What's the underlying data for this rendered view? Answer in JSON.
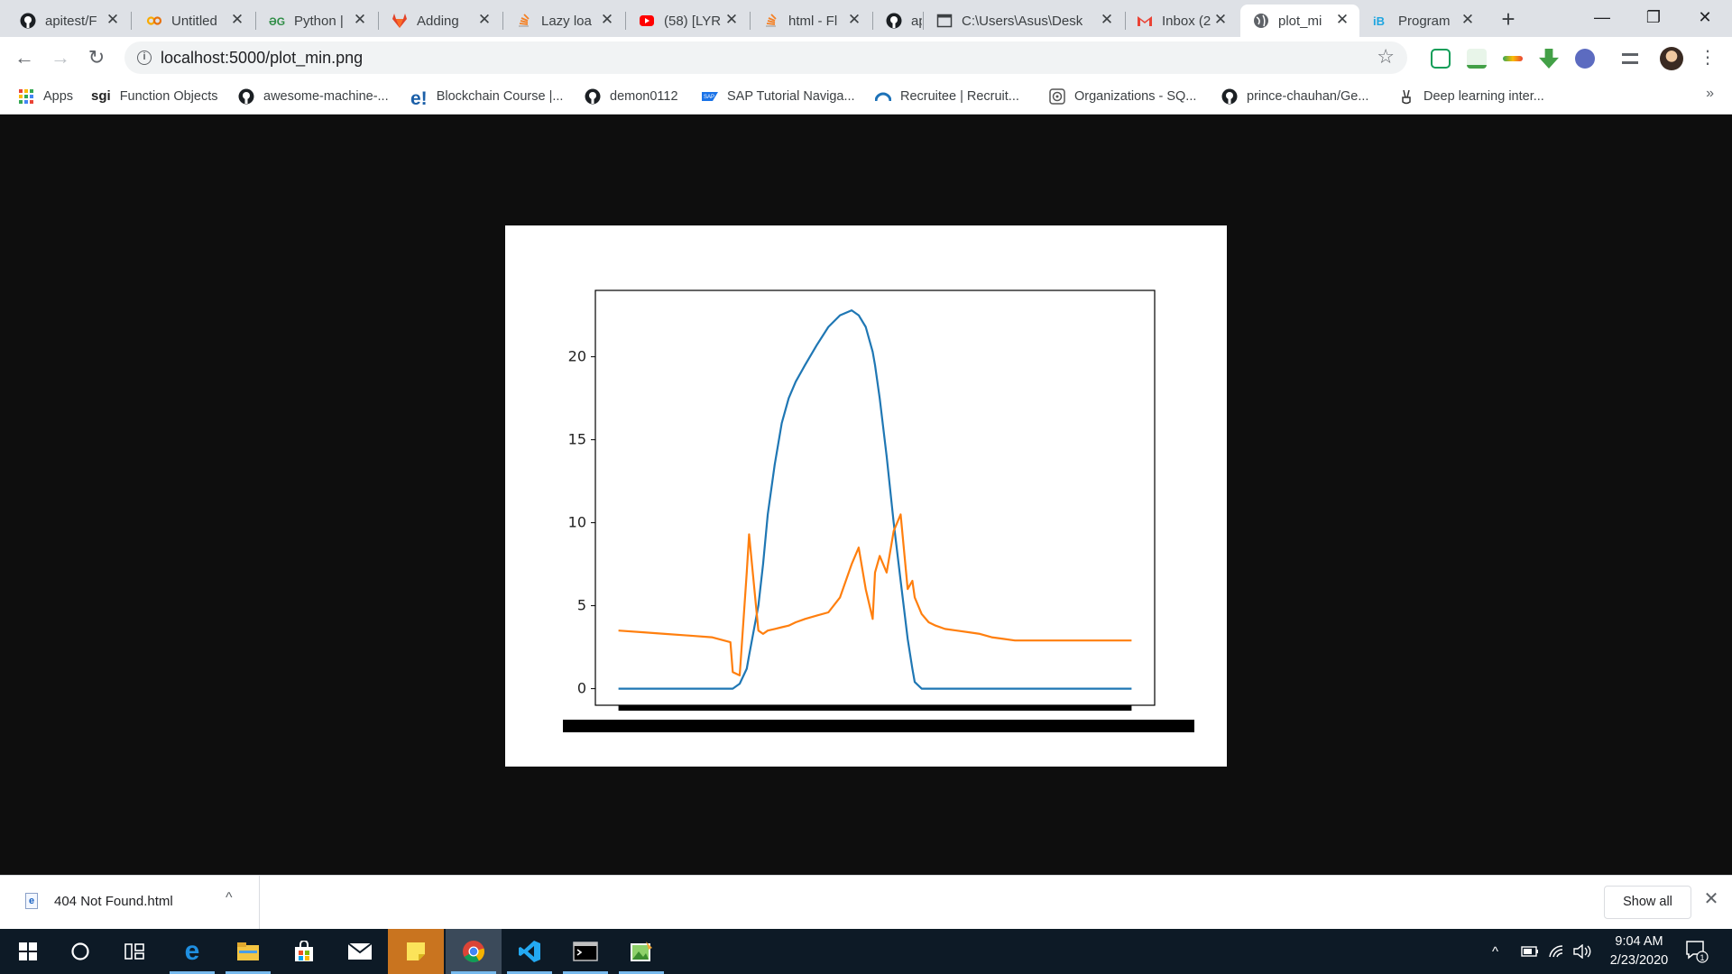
{
  "browser": {
    "tabs": [
      {
        "title": "apitest/F",
        "icon": "github-icon"
      },
      {
        "title": "Untitled",
        "icon": "colab-icon"
      },
      {
        "title": "Python |",
        "icon": "geeksforgeeks-icon"
      },
      {
        "title": "Adding",
        "icon": "gitlab-icon"
      },
      {
        "title": "Lazy loa",
        "icon": "stackoverflow-icon"
      },
      {
        "title": "(58) [LYR",
        "icon": "youtube-icon"
      },
      {
        "title": "html - Fl",
        "icon": "stackoverflow-icon"
      },
      {
        "title": "ap",
        "icon": "github-icon"
      },
      {
        "title": "C:\\Users\\Asus\\Desk",
        "icon": "file-window-icon"
      },
      {
        "title": "Inbox (2",
        "icon": "gmail-icon"
      },
      {
        "title": "plot_mi",
        "icon": "globe-icon",
        "active": true
      },
      {
        "title": "Program",
        "icon": "interviewbit-icon"
      }
    ],
    "new_tab_label": "+",
    "window_controls": {
      "minimize": "—",
      "restore": "❐",
      "close": "✕"
    },
    "toolbar": {
      "url": "localhost:5000/plot_min.png",
      "back": "←",
      "forward": "→",
      "reload": "↻"
    },
    "bookmarks": [
      {
        "label": "Apps",
        "icon": "apps-grid-icon"
      },
      {
        "label": "Function Objects",
        "icon": "sgi-icon",
        "prefix": "sgi"
      },
      {
        "label": "awesome-machine-...",
        "icon": "github-icon"
      },
      {
        "label": "Blockchain Course |...",
        "icon": "edureka-icon",
        "prefix": "e!"
      },
      {
        "label": "demon0112",
        "icon": "github-icon"
      },
      {
        "label": "SAP Tutorial Naviga...",
        "icon": "sap-icon"
      },
      {
        "label": "Recruitee | Recruit...",
        "icon": "recruitee-icon"
      },
      {
        "label": "Organizations - SQ...",
        "icon": "sq-target-icon"
      },
      {
        "label": "prince-chauhan/Ge...",
        "icon": "github-icon"
      },
      {
        "label": "Deep learning inter...",
        "icon": "peace-hand-icon"
      }
    ],
    "bookmarks_more": "»"
  },
  "chart_data": {
    "type": "line",
    "title": "",
    "xlabel": "",
    "ylabel": "",
    "ylim": [
      -1,
      24
    ],
    "yticks": [
      0,
      5,
      10,
      15,
      20
    ],
    "grid": false,
    "x_tick_labels_obscured": true,
    "x": [
      0,
      10,
      20,
      30,
      40,
      48,
      49,
      52,
      55,
      56,
      60,
      62,
      64,
      67,
      70,
      73,
      76,
      80,
      85,
      90,
      95,
      100,
      103,
      106,
      109,
      110,
      112,
      115,
      118,
      121,
      124,
      126,
      127,
      130,
      133,
      136,
      140,
      145,
      150,
      155,
      160,
      165,
      170,
      175,
      180,
      185,
      190,
      195,
      200,
      210,
      220
    ],
    "series": [
      {
        "color": "#1f77b4",
        "values": [
          0,
          0,
          0,
          0,
          0,
          0,
          0,
          0.3,
          1.2,
          2,
          5,
          7.5,
          10.5,
          13.5,
          16,
          17.5,
          18.5,
          19.5,
          20.7,
          21.8,
          22.5,
          22.8,
          22.5,
          21.8,
          20.3,
          19.5,
          17.5,
          14,
          10,
          6.5,
          3,
          1.2,
          0.4,
          0,
          0,
          0,
          0,
          0,
          0,
          0,
          0,
          0,
          0,
          0,
          0,
          0,
          0,
          0,
          0,
          0,
          0
        ]
      },
      {
        "color": "#ff7f0e",
        "values": [
          3.5,
          3.4,
          3.3,
          3.2,
          3.1,
          2.8,
          1.0,
          0.8,
          7.0,
          9.3,
          3.5,
          3.3,
          3.5,
          3.6,
          3.7,
          3.8,
          4.0,
          4.2,
          4.4,
          4.6,
          5.5,
          7.5,
          8.5,
          6.0,
          4.2,
          7.0,
          8.0,
          7.0,
          9.5,
          10.5,
          6.0,
          6.5,
          5.5,
          4.5,
          4.0,
          3.8,
          3.6,
          3.5,
          3.4,
          3.3,
          3.1,
          3.0,
          2.9,
          2.9,
          2.9,
          2.9,
          2.9,
          2.9,
          2.9,
          2.9,
          2.9
        ]
      }
    ]
  },
  "downloads": {
    "file_name": "404 Not Found.html",
    "show_all": "Show all",
    "close": "✕",
    "chevron": "^"
  },
  "taskbar": {
    "time": "9:04 AM",
    "date": "2/23/2020",
    "notification_count": "1"
  }
}
